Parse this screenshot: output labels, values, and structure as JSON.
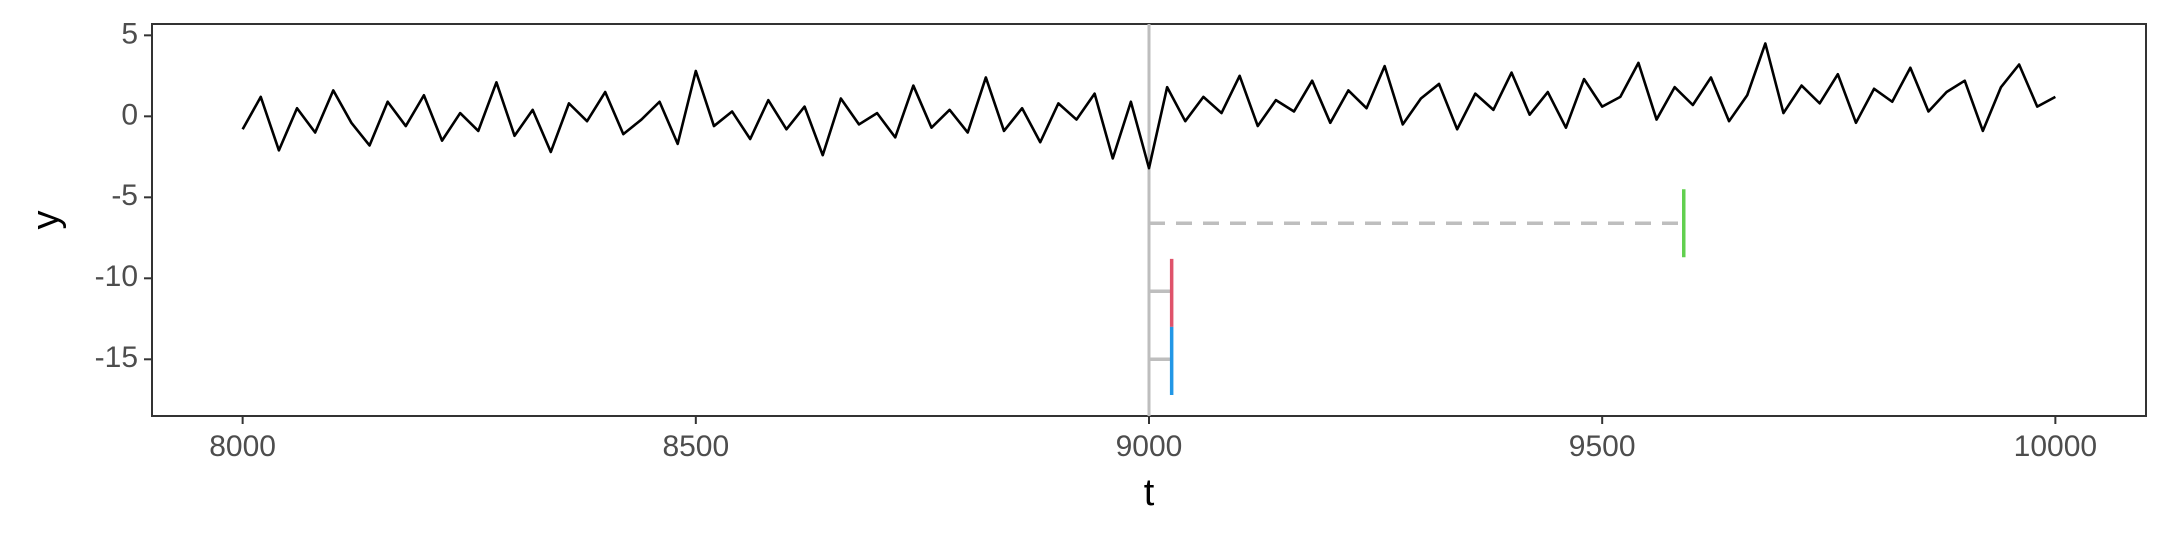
{
  "chart_data": {
    "type": "line",
    "x_label": "t",
    "y_label": "y",
    "xlim": [
      7900,
      10100
    ],
    "ylim": [
      -18.5,
      5.7
    ],
    "xticks": [
      8000,
      8500,
      9000,
      9500,
      10000
    ],
    "yticks": [
      5,
      0,
      -5,
      -10,
      -15
    ],
    "color": "#000000",
    "vline": {
      "x": 9000,
      "color": "#bebebe"
    },
    "segments": [
      {
        "x": 9000,
        "xend": 9590,
        "y": -6.6,
        "yend": -6.6,
        "color": "#bebebe",
        "linetype": "dashed"
      },
      {
        "x": 9590,
        "xend": 9590,
        "y": -4.5,
        "yend": -8.7,
        "color": "#61d04f",
        "linetype": "solid"
      },
      {
        "x": 9000,
        "xend": 9025,
        "y": -10.8,
        "yend": -10.8,
        "color": "#bebebe",
        "linetype": "solid"
      },
      {
        "x": 9000,
        "xend": 9025,
        "y": -15,
        "yend": -15,
        "color": "#bebebe",
        "linetype": "solid"
      },
      {
        "x": 9025,
        "xend": 9025,
        "y": -8.8,
        "yend": -13,
        "color": "#df536b",
        "linetype": "solid"
      },
      {
        "x": 9025,
        "xend": 9025,
        "y": -13,
        "yend": -17.2,
        "color": "#2297e6",
        "linetype": "solid"
      }
    ],
    "x": [
      8000,
      8020,
      8040,
      8060,
      8080,
      8100,
      8120,
      8140,
      8160,
      8180,
      8200,
      8220,
      8240,
      8260,
      8280,
      8300,
      8320,
      8340,
      8360,
      8380,
      8400,
      8420,
      8440,
      8460,
      8480,
      8500,
      8520,
      8540,
      8560,
      8580,
      8600,
      8620,
      8640,
      8660,
      8680,
      8700,
      8720,
      8740,
      8760,
      8780,
      8800,
      8820,
      8840,
      8860,
      8880,
      8900,
      8920,
      8940,
      8960,
      8980,
      9000,
      9020,
      9040,
      9060,
      9080,
      9100,
      9120,
      9140,
      9160,
      9180,
      9200,
      9220,
      9240,
      9260,
      9280,
      9300,
      9320,
      9340,
      9360,
      9380,
      9400,
      9420,
      9440,
      9460,
      9480,
      9500,
      9520,
      9540,
      9560,
      9580,
      9600,
      9620,
      9640,
      9660,
      9680,
      9700,
      9720,
      9740,
      9760,
      9780,
      9800,
      9820,
      9840,
      9860,
      9880,
      9900,
      9920,
      9940,
      9960,
      9980,
      10000
    ],
    "values": [
      -0.8,
      1.2,
      -2.1,
      0.5,
      -1.0,
      1.6,
      -0.4,
      -1.8,
      0.9,
      -0.6,
      1.3,
      -1.5,
      0.2,
      -0.9,
      2.1,
      -1.2,
      0.4,
      -2.2,
      0.8,
      -0.3,
      1.5,
      -1.1,
      -0.2,
      0.9,
      -1.7,
      2.8,
      -0.6,
      0.3,
      -1.4,
      1.0,
      -0.8,
      0.6,
      -2.4,
      1.1,
      -0.5,
      0.2,
      -1.3,
      1.9,
      -0.7,
      0.4,
      -1.0,
      2.4,
      -0.9,
      0.5,
      -1.6,
      0.8,
      -0.2,
      1.4,
      -2.6,
      0.9,
      -3.2,
      1.8,
      -0.3,
      1.2,
      0.2,
      2.5,
      -0.6,
      1.0,
      0.3,
      2.2,
      -0.4,
      1.6,
      0.5,
      3.1,
      -0.5,
      1.1,
      2.0,
      -0.8,
      1.4,
      0.4,
      2.7,
      0.1,
      1.5,
      -0.7,
      2.3,
      0.6,
      1.2,
      3.3,
      -0.2,
      1.8,
      0.7,
      2.4,
      -0.3,
      1.3,
      4.5,
      0.2,
      1.9,
      0.8,
      2.6,
      -0.4,
      1.7,
      0.9,
      3.0,
      0.3,
      1.5,
      2.2,
      -0.9,
      1.8,
      3.2,
      0.6,
      1.2
    ]
  }
}
